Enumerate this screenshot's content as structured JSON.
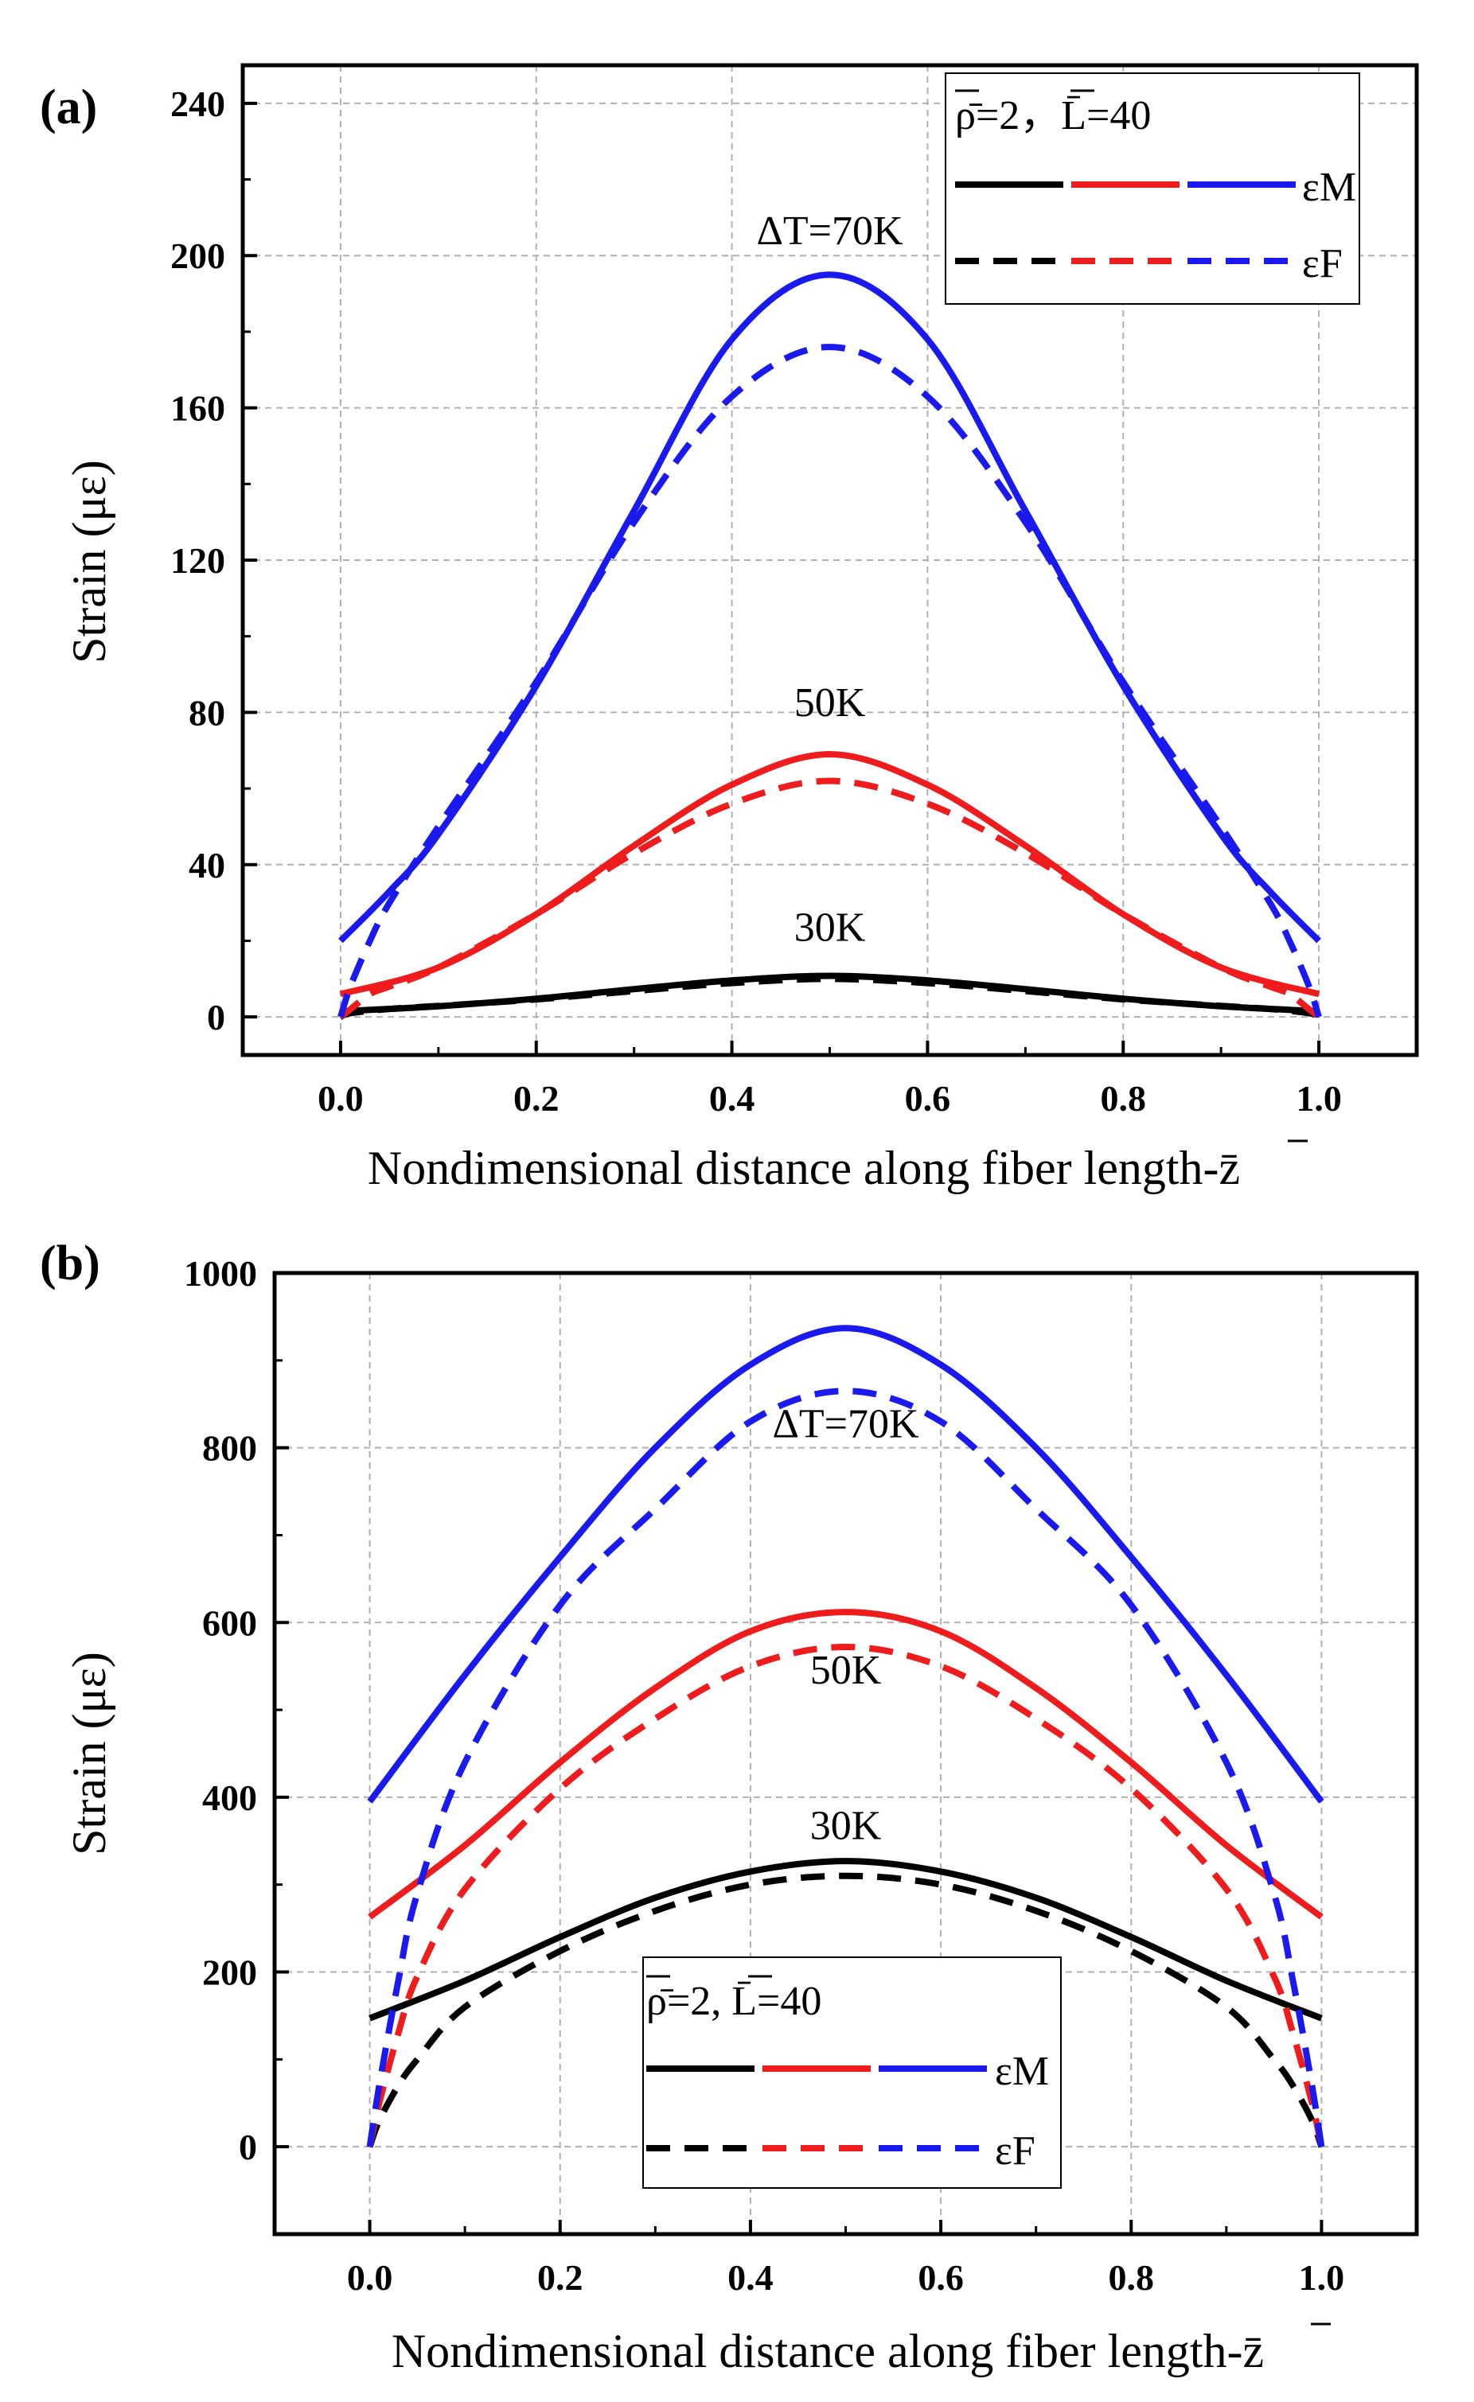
{
  "chart_data": [
    {
      "panel_label": "(a)",
      "type": "line",
      "xlabel": "Nondimensional distance along fiber length-z̄",
      "ylabel": "Strain (με)",
      "xlim": [
        -0.1,
        1.1
      ],
      "ylim": [
        -10,
        250
      ],
      "xticks": [
        "0.0",
        "0.2",
        "0.4",
        "0.6",
        "0.8",
        "1.0"
      ],
      "yticks": [
        "0",
        "40",
        "80",
        "120",
        "160",
        "200",
        "240"
      ],
      "xtick_values": [
        0.0,
        0.2,
        0.4,
        0.6,
        0.8,
        1.0
      ],
      "ytick_values": [
        0,
        40,
        80,
        120,
        160,
        200,
        240
      ],
      "grid": true,
      "legend": {
        "position": "top-right",
        "params": "ρ̄=2，L̄=40",
        "solid_label": "εM",
        "dashed_label": "εF"
      },
      "annotations": [
        {
          "text": "ΔT=70K",
          "x": 0.5,
          "y": 203
        },
        {
          "text": "50K",
          "x": 0.5,
          "y": 79
        },
        {
          "text": "30K",
          "x": 0.5,
          "y": 20
        }
      ],
      "series": [
        {
          "style": "solid",
          "color": "#000000",
          "x": [
            0,
            0.1,
            0.2,
            0.3,
            0.4,
            0.5,
            0.6,
            0.7,
            0.8,
            0.9,
            1.0
          ],
          "values": [
            1.5,
            2.8,
            4.8,
            7.3,
            9.6,
            10.8,
            9.6,
            7.3,
            4.8,
            2.8,
            1.5
          ]
        },
        {
          "style": "dashed",
          "color": "#000000",
          "x": [
            0,
            0.01,
            0.05,
            0.1,
            0.2,
            0.3,
            0.4,
            0.5,
            0.6,
            0.7,
            0.8,
            0.9,
            0.95,
            0.99,
            1.0
          ],
          "values": [
            0,
            1.0,
            2.1,
            2.9,
            4.6,
            6.8,
            8.9,
            10.0,
            8.9,
            6.8,
            4.6,
            2.9,
            2.1,
            1.0,
            0
          ]
        },
        {
          "style": "solid",
          "color": "#ee1c1c",
          "x": [
            0,
            0.1,
            0.2,
            0.3,
            0.4,
            0.5,
            0.6,
            0.7,
            0.8,
            0.9,
            1.0
          ],
          "values": [
            6,
            13,
            27,
            45,
            61,
            69,
            61,
            45,
            27,
            13,
            6
          ]
        },
        {
          "style": "dashed",
          "color": "#ee1c1c",
          "x": [
            0,
            0.01,
            0.03,
            0.05,
            0.1,
            0.2,
            0.3,
            0.4,
            0.5,
            0.6,
            0.7,
            0.8,
            0.9,
            0.95,
            0.97,
            0.99,
            1.0
          ],
          "values": [
            0,
            2,
            6,
            8,
            13,
            27,
            43,
            56,
            62,
            56,
            43,
            27,
            13,
            8,
            6,
            2,
            0
          ]
        },
        {
          "style": "solid",
          "color": "#1a1aee",
          "x": [
            0,
            0.05,
            0.1,
            0.2,
            0.3,
            0.4,
            0.5,
            0.6,
            0.7,
            0.8,
            0.9,
            0.95,
            1.0
          ],
          "values": [
            20,
            33,
            48,
            87,
            133,
            178,
            195,
            178,
            133,
            87,
            48,
            33,
            20
          ]
        },
        {
          "style": "dashed",
          "color": "#1a1aee",
          "x": [
            0,
            0.01,
            0.03,
            0.05,
            0.1,
            0.2,
            0.3,
            0.4,
            0.5,
            0.6,
            0.7,
            0.8,
            0.9,
            0.95,
            0.97,
            0.99,
            1.0
          ],
          "values": [
            0,
            8,
            20,
            30,
            50,
            88,
            130,
            163,
            176,
            163,
            130,
            88,
            50,
            30,
            20,
            8,
            0
          ]
        }
      ]
    },
    {
      "panel_label": "(b)",
      "type": "line",
      "xlabel": "Nondimensional distance along fiber length-z̄",
      "ylabel": "Strain (με)",
      "xlim": [
        -0.1,
        1.1
      ],
      "ylim": [
        -100,
        1000
      ],
      "xticks": [
        "0.0",
        "0.2",
        "0.4",
        "0.6",
        "0.8",
        "1.0"
      ],
      "yticks": [
        "0",
        "200",
        "400",
        "600",
        "800",
        "1000"
      ],
      "xtick_values": [
        0.0,
        0.2,
        0.4,
        0.6,
        0.8,
        1.0
      ],
      "ytick_values": [
        0,
        200,
        400,
        600,
        800,
        1000
      ],
      "grid": true,
      "legend": {
        "position": "lower-center",
        "params": "ρ̄=2, L̄=40",
        "solid_label": "εM",
        "dashed_label": "εF"
      },
      "annotations": [
        {
          "text": "ΔT=70K",
          "x": 0.5,
          "y": 812
        },
        {
          "text": "50K",
          "x": 0.5,
          "y": 530
        },
        {
          "text": "30K",
          "x": 0.5,
          "y": 352
        }
      ],
      "series": [
        {
          "style": "solid",
          "color": "#000000",
          "x": [
            0,
            0.1,
            0.2,
            0.3,
            0.4,
            0.5,
            0.6,
            0.7,
            0.8,
            0.9,
            1.0
          ],
          "values": [
            147,
            190,
            240,
            285,
            315,
            327,
            315,
            285,
            240,
            190,
            147
          ]
        },
        {
          "style": "dashed",
          "color": "#000000",
          "x": [
            0,
            0.01,
            0.03,
            0.05,
            0.1,
            0.2,
            0.3,
            0.4,
            0.5,
            0.6,
            0.7,
            0.8,
            0.9,
            0.95,
            0.97,
            0.99,
            1.0
          ],
          "values": [
            0,
            30,
            70,
            100,
            160,
            224,
            270,
            300,
            310,
            300,
            270,
            224,
            160,
            100,
            70,
            30,
            0
          ]
        },
        {
          "style": "solid",
          "color": "#ee1c1c",
          "x": [
            0,
            0.1,
            0.2,
            0.3,
            0.4,
            0.5,
            0.6,
            0.7,
            0.8,
            0.9,
            1.0
          ],
          "values": [
            263,
            345,
            440,
            525,
            590,
            612,
            590,
            525,
            440,
            345,
            263
          ]
        },
        {
          "style": "dashed",
          "color": "#ee1c1c",
          "x": [
            0,
            0.01,
            0.03,
            0.05,
            0.1,
            0.2,
            0.3,
            0.4,
            0.5,
            0.6,
            0.7,
            0.8,
            0.9,
            0.95,
            0.97,
            0.99,
            1.0
          ],
          "values": [
            0,
            50,
            130,
            195,
            295,
            410,
            490,
            550,
            572,
            550,
            490,
            410,
            295,
            195,
            130,
            50,
            0
          ]
        },
        {
          "style": "solid",
          "color": "#1a1aee",
          "x": [
            0,
            0.1,
            0.2,
            0.3,
            0.4,
            0.5,
            0.6,
            0.7,
            0.8,
            0.9,
            1.0
          ],
          "values": [
            395,
            540,
            675,
            800,
            895,
            937,
            895,
            800,
            675,
            540,
            395
          ]
        },
        {
          "style": "dashed",
          "color": "#1a1aee",
          "x": [
            0,
            0.01,
            0.03,
            0.05,
            0.1,
            0.2,
            0.3,
            0.4,
            0.5,
            0.6,
            0.7,
            0.8,
            0.9,
            0.95,
            0.97,
            0.99,
            1.0
          ],
          "values": [
            0,
            70,
            190,
            290,
            440,
            620,
            730,
            830,
            865,
            830,
            730,
            620,
            440,
            290,
            190,
            70,
            0
          ]
        }
      ]
    }
  ]
}
